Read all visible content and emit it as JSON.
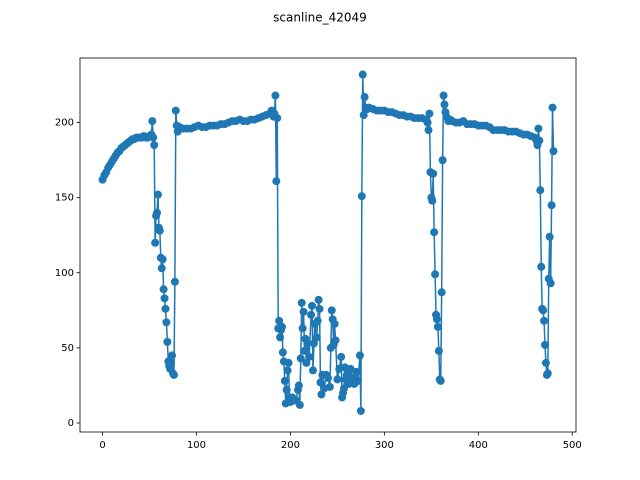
{
  "chart_data": {
    "type": "line",
    "title": "scanline_42049",
    "color": "#1f77b4",
    "xlim": [
      -24,
      504
    ],
    "ylim": [
      -6,
      243
    ],
    "xticks": [
      0,
      100,
      200,
      300,
      400,
      500
    ],
    "yticks": [
      0,
      50,
      100,
      150,
      200
    ],
    "x": [
      0,
      2,
      4,
      6,
      8,
      10,
      12,
      14,
      16,
      18,
      20,
      22,
      24,
      26,
      28,
      30,
      32,
      34,
      36,
      38,
      40,
      42,
      44,
      46,
      48,
      50,
      52,
      53,
      54,
      55,
      56,
      57,
      58,
      59,
      60,
      61,
      62,
      63,
      64,
      65,
      66,
      67,
      68,
      69,
      70,
      71,
      72,
      73,
      74,
      75,
      76,
      77,
      78,
      79,
      80,
      82,
      86,
      90,
      94,
      98,
      102,
      106,
      110,
      114,
      118,
      122,
      126,
      130,
      134,
      138,
      142,
      146,
      150,
      154,
      158,
      162,
      166,
      170,
      174,
      178,
      180,
      182,
      183,
      184,
      185,
      186,
      187,
      188,
      189,
      190,
      191,
      192,
      193,
      194,
      195,
      196,
      197,
      198,
      199,
      200,
      202,
      204,
      206,
      208,
      209,
      210,
      211,
      212,
      213,
      214,
      215,
      216,
      217,
      218,
      220,
      222,
      223,
      224,
      225,
      226,
      228,
      229,
      230,
      231,
      232,
      233,
      234,
      236,
      238,
      240,
      242,
      243,
      244,
      245,
      246,
      247,
      248,
      250,
      252,
      254,
      255,
      256,
      257,
      258,
      259,
      260,
      262,
      264,
      266,
      268,
      270,
      272,
      274,
      275,
      276,
      277,
      278,
      279,
      280,
      282,
      284,
      288,
      292,
      296,
      300,
      304,
      308,
      312,
      316,
      320,
      324,
      328,
      332,
      336,
      340,
      344,
      346,
      347,
      348,
      349,
      350,
      351,
      352,
      353,
      354,
      355,
      356,
      357,
      358,
      359,
      360,
      361,
      362,
      363,
      364,
      365,
      366,
      368,
      370,
      372,
      376,
      380,
      384,
      388,
      392,
      396,
      400,
      404,
      408,
      412,
      416,
      420,
      424,
      428,
      432,
      436,
      440,
      444,
      448,
      452,
      456,
      460,
      462,
      463,
      464,
      465,
      466,
      467,
      468,
      469,
      470,
      471,
      472,
      473,
      474,
      475,
      476,
      477,
      478,
      479,
      480
    ],
    "values": [
      162,
      165,
      167,
      170,
      172,
      174,
      176,
      178,
      180,
      181,
      183,
      184,
      185,
      186,
      187,
      188,
      189,
      189,
      190,
      190,
      190,
      190,
      191,
      190,
      190,
      191,
      192,
      201,
      190,
      185,
      120,
      138,
      140,
      152,
      130,
      128,
      110,
      103,
      109,
      89,
      83,
      76,
      67,
      54,
      41,
      38,
      36,
      40,
      45,
      33,
      32,
      94,
      208,
      198,
      194,
      197,
      196,
      196,
      196,
      197,
      198,
      197,
      197,
      198,
      198,
      198,
      199,
      199,
      200,
      201,
      201,
      202,
      201,
      201,
      202,
      202,
      203,
      204,
      205,
      206,
      208,
      204,
      206,
      218,
      161,
      203,
      63,
      68,
      57,
      62,
      64,
      47,
      41,
      28,
      13,
      22,
      35,
      40,
      17,
      14,
      17,
      15,
      15,
      22,
      25,
      12,
      43,
      80,
      63,
      74,
      48,
      56,
      40,
      53,
      44,
      72,
      78,
      35,
      53,
      66,
      57,
      68,
      82,
      76,
      27,
      19,
      32,
      23,
      32,
      30,
      24,
      50,
      75,
      69,
      52,
      66,
      55,
      29,
      36,
      44,
      17,
      20,
      23,
      37,
      29,
      32,
      26,
      36,
      30,
      26,
      34,
      28,
      45,
      8,
      151,
      232,
      205,
      217,
      210,
      209,
      210,
      209,
      208,
      208,
      208,
      207,
      207,
      206,
      205,
      205,
      204,
      204,
      203,
      203,
      203,
      202,
      200,
      195,
      206,
      167,
      150,
      148,
      166,
      127,
      99,
      72,
      69,
      64,
      48,
      29,
      28,
      87,
      175,
      218,
      212,
      207,
      204,
      201,
      202,
      201,
      200,
      200,
      201,
      199,
      199,
      199,
      198,
      198,
      198,
      197,
      195,
      195,
      195,
      195,
      194,
      194,
      194,
      193,
      192,
      192,
      191,
      190,
      188,
      185,
      196,
      188,
      155,
      104,
      76,
      75,
      68,
      52,
      40,
      32,
      33,
      96,
      124,
      93,
      145,
      210,
      181
    ]
  }
}
